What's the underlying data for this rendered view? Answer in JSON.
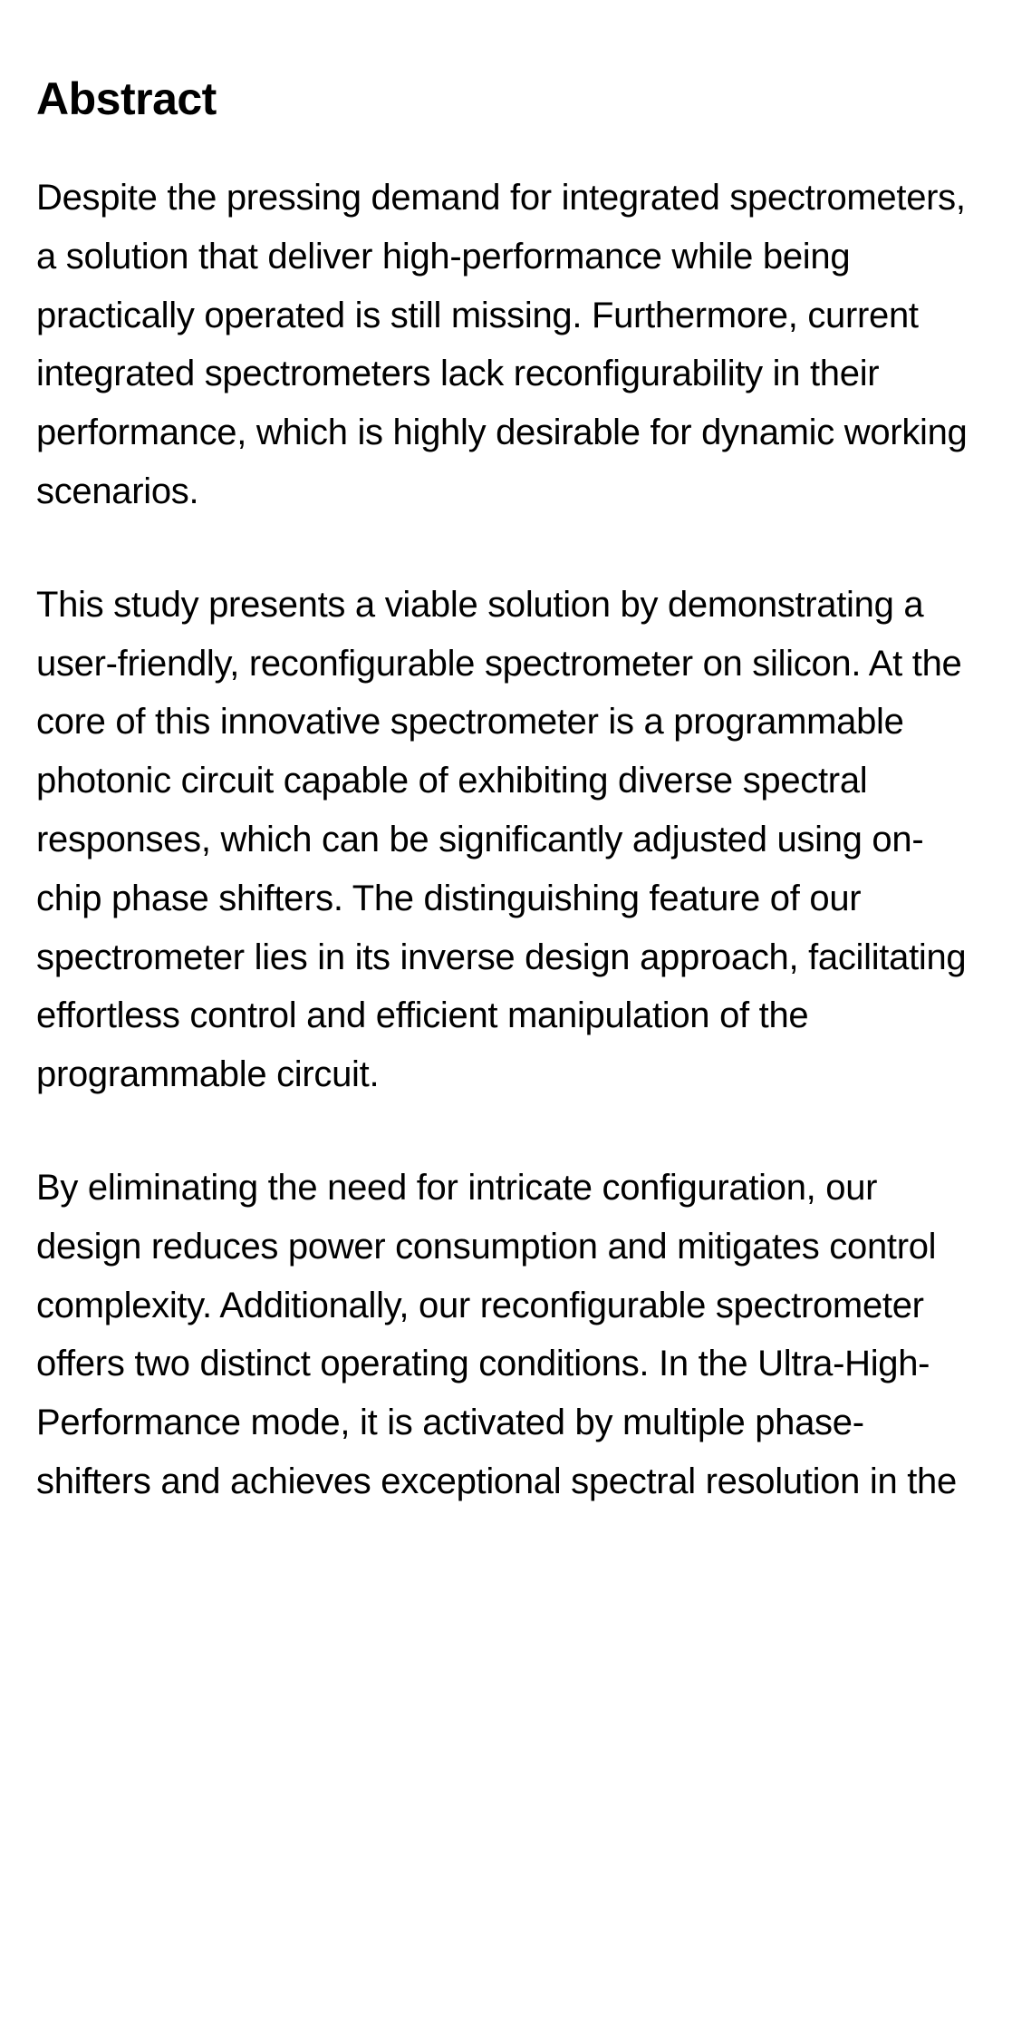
{
  "abstract": {
    "heading": "Abstract",
    "paragraphs": [
      "Despite the pressing demand for integrated spectrometers, a solution that deliver high-performance while being practically operated is still missing. Furthermore, current integrated spectrometers lack reconfigurability in their performance, which is highly desirable for dynamic working scenarios.",
      "This study presents a viable solution by demonstrating a user-friendly, reconfigurable spectrometer on silicon. At the core of this innovative spectrometer is a programmable photonic circuit capable of exhibiting diverse spectral responses, which can be significantly adjusted using on-chip phase shifters. The distinguishing feature of our spectrometer lies in its inverse design approach, facilitating effortless control and efficient manipulation of the programmable circuit.",
      "By eliminating the need for intricate configuration, our design reduces power consumption and mitigates control complexity. Additionally, our reconfigurable spectrometer offers two distinct operating conditions. In the Ultra-High-Performance mode, it is activated by multiple phase-shifters and achieves exceptional spectral resolution in the"
    ]
  }
}
